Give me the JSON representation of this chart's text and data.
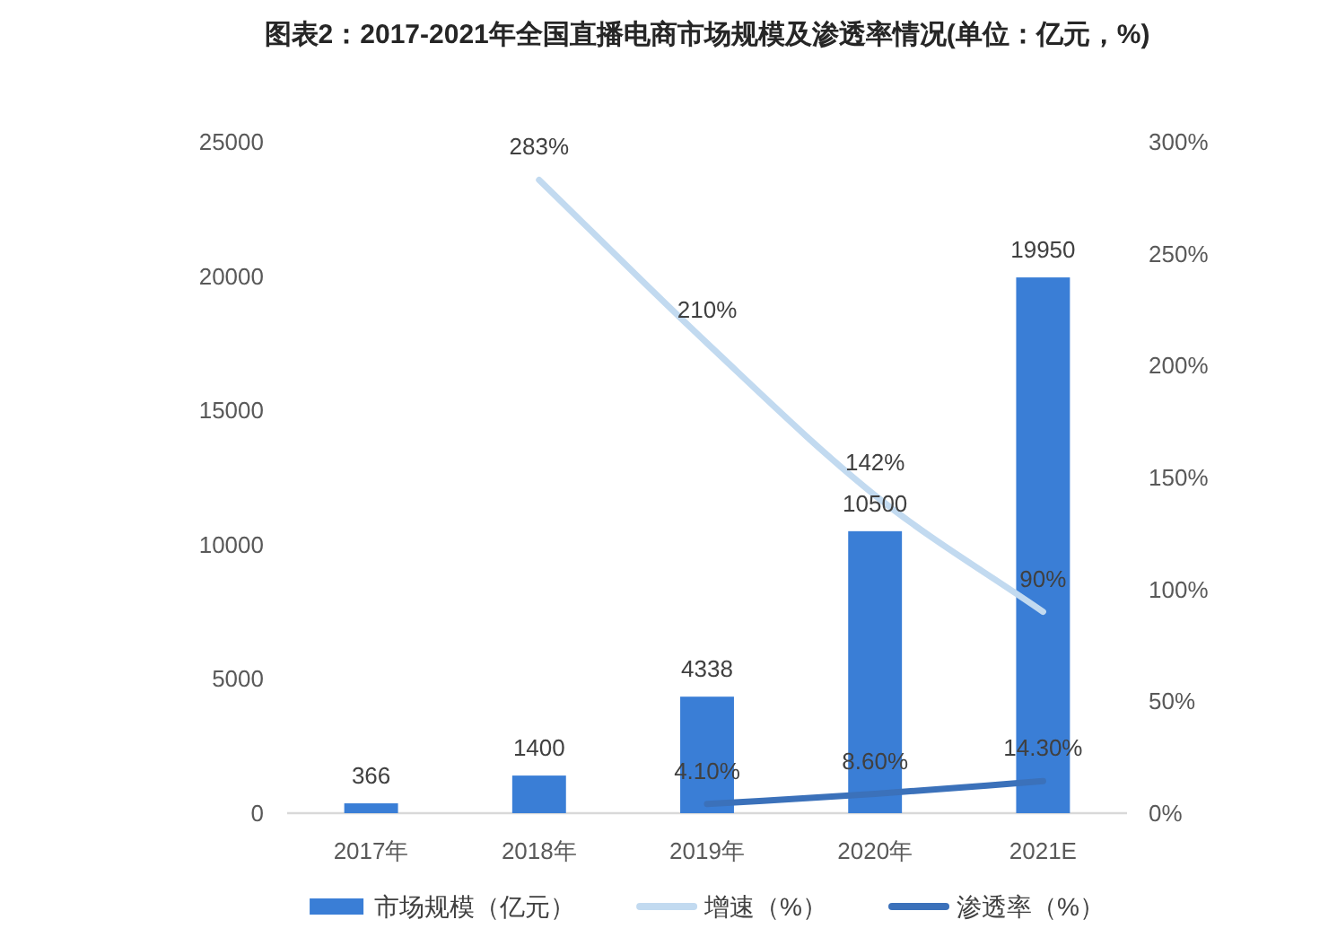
{
  "chart_data": {
    "type": "bar",
    "title": "图表2：2017-2021年全国直播电商市场规模及渗透率情况(单位：亿元，%)",
    "categories": [
      "2017年",
      "2018年",
      "2019年",
      "2020年",
      "2021E"
    ],
    "series": [
      {
        "name": "市场规模（亿元）",
        "color": "#3a7ed6",
        "values": [
          366,
          1400,
          4338,
          10500,
          19950
        ],
        "value_labels": [
          "366",
          "1400",
          "4338",
          "10500",
          "19950"
        ]
      },
      {
        "name": "增速（%）",
        "type": "line",
        "axis": "y2",
        "color": "#c2daf0",
        "values": [
          null,
          283,
          210,
          142,
          90
        ],
        "value_labels": [
          null,
          "283%",
          "210%",
          "142%",
          "90%"
        ]
      },
      {
        "name": "渗透率（%）",
        "type": "line",
        "axis": "y2",
        "color": "#3b71ba",
        "values": [
          null,
          null,
          4.1,
          8.6,
          14.3
        ],
        "value_labels": [
          null,
          null,
          "4.10%",
          "8.60%",
          "14.30%"
        ]
      }
    ],
    "ylim": [
      0,
      25000
    ],
    "yticks": [
      0,
      5000,
      10000,
      15000,
      20000,
      25000
    ],
    "y2lim": [
      0,
      300
    ],
    "y2ticks": [
      {
        "value": 0,
        "label": "0%"
      },
      {
        "value": 50,
        "label": "50%"
      },
      {
        "value": 100,
        "label": "100%"
      },
      {
        "value": 150,
        "label": "150%"
      },
      {
        "value": 200,
        "label": "200%"
      },
      {
        "value": 250,
        "label": "250%"
      },
      {
        "value": 300,
        "label": "300%"
      }
    ],
    "legend": "bottom"
  }
}
